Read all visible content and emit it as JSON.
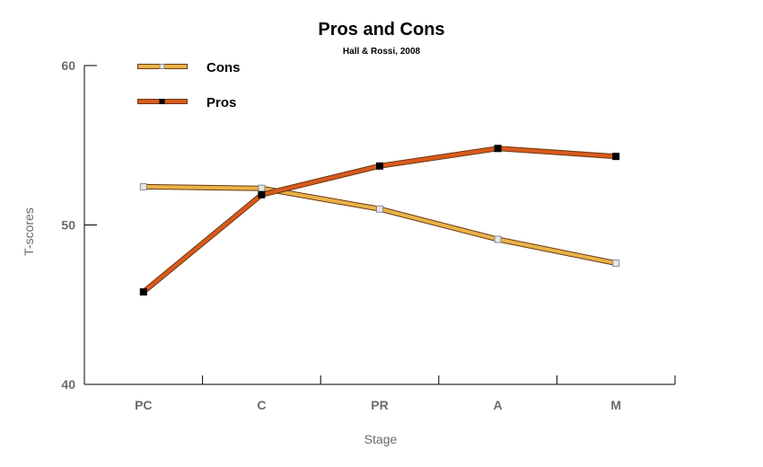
{
  "chart_data": {
    "type": "line",
    "title": "Pros and Cons",
    "subtitle": "Hall & Rossi, 2008",
    "xlabel": "Stage",
    "ylabel": "T-scores",
    "categories": [
      "PC",
      "C",
      "PR",
      "A",
      "M"
    ],
    "ylim": [
      40,
      60
    ],
    "yticks": [
      40,
      50,
      60
    ],
    "grid": false,
    "legend_position": "top-left",
    "series": [
      {
        "name": "Cons",
        "values": [
          52.4,
          52.3,
          51.0,
          49.1,
          47.6
        ],
        "color": "#e8b24a",
        "marker_color": "#e6e6e6"
      },
      {
        "name": "Pros",
        "values": [
          45.8,
          51.9,
          53.7,
          54.8,
          54.3
        ],
        "color": "#d85a1e",
        "marker_color": "#000000"
      }
    ]
  }
}
